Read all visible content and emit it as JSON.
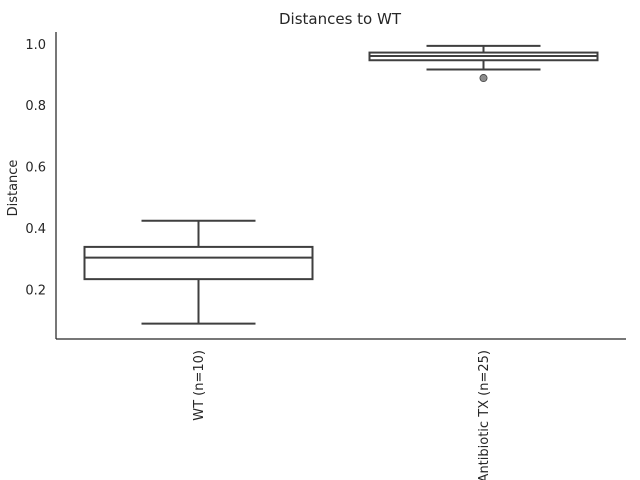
{
  "chart_data": {
    "type": "box",
    "title": "Distances to WT",
    "xlabel": "",
    "ylabel": "Distance",
    "ylim": [
      0.04,
      1.04
    ],
    "yticks": [
      0.2,
      0.4,
      0.6,
      0.8,
      1.0
    ],
    "ytick_labels": [
      "0.2",
      "0.4",
      "0.6",
      "0.8",
      "1.0"
    ],
    "grid": false,
    "categories": [
      "WT (n=10)",
      "Antibiotic TX (n=25)"
    ],
    "boxes": [
      {
        "whislo": 0.09,
        "q1": 0.235,
        "med": 0.305,
        "q3": 0.34,
        "whishi": 0.425,
        "fliers": []
      },
      {
        "whislo": 0.918,
        "q1": 0.948,
        "med": 0.962,
        "q3": 0.973,
        "whishi": 0.995,
        "fliers": [
          0.89
        ]
      }
    ]
  }
}
